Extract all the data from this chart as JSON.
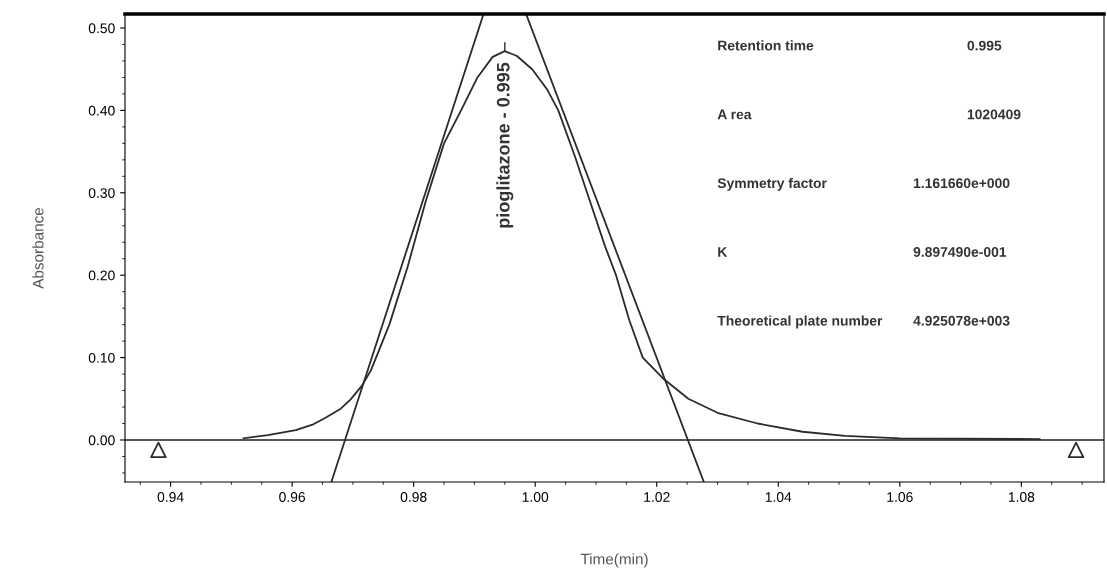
{
  "chart_data": {
    "type": "line",
    "xlabel": "Time(min)",
    "ylabel": "Absorbance",
    "xlim": [
      0.9325,
      1.0936
    ],
    "ylim": [
      -0.051,
      0.517
    ],
    "xticks": [
      {
        "value": 0.94,
        "label": "0.94"
      },
      {
        "value": 0.96,
        "label": "0.96"
      },
      {
        "value": 0.98,
        "label": "0.98"
      },
      {
        "value": 1.0,
        "label": "1.00"
      },
      {
        "value": 1.02,
        "label": "1.02"
      },
      {
        "value": 1.04,
        "label": "1.04"
      },
      {
        "value": 1.06,
        "label": "1.06"
      },
      {
        "value": 1.08,
        "label": "1.08"
      }
    ],
    "yticks": [
      {
        "value": 0.0,
        "label": "0.00"
      },
      {
        "value": 0.1,
        "label": "0.10"
      },
      {
        "value": 0.2,
        "label": "0.20"
      },
      {
        "value": 0.3,
        "label": "0.30"
      },
      {
        "value": 0.4,
        "label": "0.40"
      },
      {
        "value": 0.5,
        "label": "0.50"
      }
    ],
    "grid": false,
    "legend": false,
    "marker": "none",
    "line_style": "solid",
    "series": [
      {
        "color": "#2b2b2b",
        "x": [
          0.952,
          0.956,
          0.9606,
          0.9635,
          0.9655,
          0.968,
          0.9696,
          0.9715,
          0.973,
          0.976,
          0.979,
          0.982,
          0.985,
          0.9878,
          0.9905,
          0.993,
          0.995,
          0.997,
          0.9995,
          1.002,
          1.0038,
          1.0065,
          1.009,
          1.0115,
          1.0133,
          1.0155,
          1.0177,
          1.021,
          1.0252,
          1.03,
          1.0366,
          1.044,
          1.051,
          1.06,
          1.083
        ],
        "values": [
          0.002,
          0.006,
          0.012,
          0.019,
          0.027,
          0.038,
          0.049,
          0.066,
          0.085,
          0.14,
          0.21,
          0.29,
          0.36,
          0.4,
          0.44,
          0.465,
          0.472,
          0.466,
          0.45,
          0.425,
          0.4,
          0.345,
          0.29,
          0.235,
          0.2,
          0.145,
          0.1,
          0.075,
          0.05,
          0.033,
          0.02,
          0.01,
          0.005,
          0.002,
          0.001
        ]
      },
      {
        "color": "#2b2b2b",
        "x": [
          0.9665,
          0.9915
        ],
        "values": [
          -0.05,
          0.517
        ]
      },
      {
        "color": "#2b2b2b",
        "x": [
          0.9985,
          1.0277
        ],
        "values": [
          0.517,
          -0.05
        ]
      },
      {
        "type": "scatter",
        "marker": "triangle",
        "color": "#2b2b2b",
        "x": [
          0.938,
          1.089
        ],
        "values": [
          -0.012,
          -0.012
        ]
      }
    ],
    "ref_lines": [
      {
        "axis": "y",
        "value": 0.0,
        "color": "#555555"
      }
    ],
    "annotations": [
      {
        "text": "pioglitazone - 0.995",
        "x": 0.995,
        "y": 0.472
      },
      "Retention time",
      "0.995",
      "A rea",
      "1020409",
      "Symmetry factor",
      "1.161660e+000",
      "K",
      "9.897490e-001",
      "Theoretical plate number",
      "4.925078e+003"
    ]
  }
}
